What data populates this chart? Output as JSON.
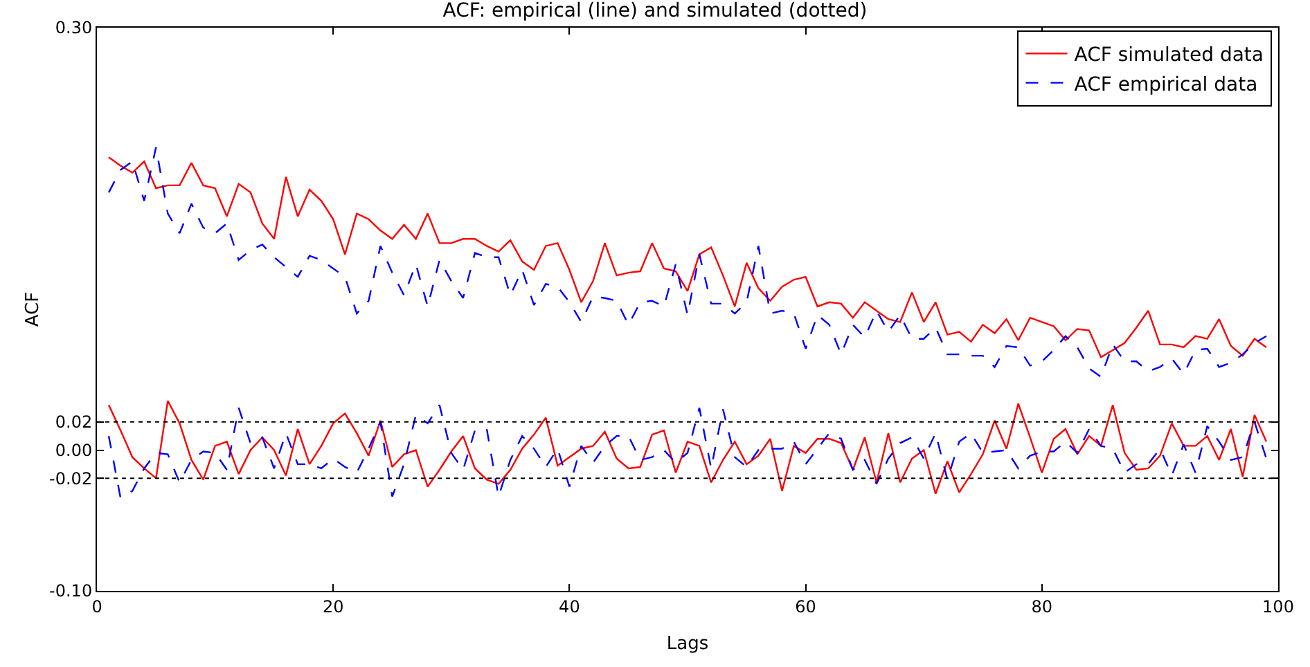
{
  "chart_data": {
    "type": "line",
    "title": "ACF: empirical (line) and simulated (dotted)",
    "xlabel": "Lags",
    "ylabel": "ACF",
    "x": [
      1,
      2,
      3,
      4,
      5,
      6,
      7,
      8,
      9,
      10,
      11,
      12,
      13,
      14,
      15,
      16,
      17,
      18,
      19,
      20,
      21,
      22,
      23,
      24,
      25,
      26,
      27,
      28,
      29,
      30,
      31,
      32,
      33,
      34,
      35,
      36,
      37,
      38,
      39,
      40,
      41,
      42,
      43,
      44,
      45,
      46,
      47,
      48,
      49,
      50,
      51,
      52,
      53,
      54,
      55,
      56,
      57,
      58,
      59,
      60,
      61,
      62,
      63,
      64,
      65,
      66,
      67,
      68,
      69,
      70,
      71,
      72,
      73,
      74,
      75,
      76,
      77,
      78,
      79,
      80,
      81,
      82,
      83,
      84,
      85,
      86,
      87,
      88,
      89,
      90,
      91,
      92,
      93,
      94,
      95,
      96,
      97,
      98,
      99
    ],
    "series": [
      {
        "name": "ACF simulated data",
        "color": "#ff0000",
        "line_style": "solid",
        "values": [
          0.208,
          0.202,
          0.197,
          0.205,
          0.186,
          0.188,
          0.188,
          0.204,
          0.188,
          0.186,
          0.166,
          0.189,
          0.183,
          0.161,
          0.15,
          0.194,
          0.166,
          0.185,
          0.177,
          0.164,
          0.139,
          0.168,
          0.164,
          0.156,
          0.15,
          0.16,
          0.15,
          0.168,
          0.147,
          0.147,
          0.15,
          0.15,
          0.145,
          0.141,
          0.149,
          0.134,
          0.128,
          0.145,
          0.147,
          0.128,
          0.105,
          0.12,
          0.147,
          0.124,
          0.126,
          0.127,
          0.147,
          0.129,
          0.127,
          0.113,
          0.139,
          0.144,
          0.124,
          0.102,
          0.133,
          0.115,
          0.106,
          0.116,
          0.121,
          0.123,
          0.102,
          0.105,
          0.104,
          0.094,
          0.105,
          0.099,
          0.093,
          0.091,
          0.112,
          0.091,
          0.105,
          0.082,
          0.084,
          0.077,
          0.089,
          0.083,
          0.093,
          0.078,
          0.094,
          0.091,
          0.088,
          0.078,
          0.086,
          0.085,
          0.066,
          0.071,
          0.076,
          0.087,
          0.099,
          0.075,
          0.075,
          0.073,
          0.081,
          0.079,
          0.093,
          0.074,
          0.067,
          0.079,
          0.073
        ]
      },
      {
        "name": "ACF empirical data",
        "color": "#0000ff",
        "line_style": "dashed",
        "values": [
          0.183,
          0.199,
          0.205,
          0.177,
          0.215,
          0.168,
          0.154,
          0.175,
          0.158,
          0.154,
          0.161,
          0.135,
          0.142,
          0.146,
          0.137,
          0.13,
          0.123,
          0.138,
          0.135,
          0.129,
          0.123,
          0.097,
          0.106,
          0.145,
          0.126,
          0.11,
          0.132,
          0.102,
          0.135,
          0.12,
          0.108,
          0.14,
          0.137,
          0.137,
          0.11,
          0.128,
          0.103,
          0.118,
          0.116,
          0.105,
          0.091,
          0.109,
          0.108,
          0.106,
          0.089,
          0.105,
          0.106,
          0.102,
          0.132,
          0.096,
          0.139,
          0.104,
          0.104,
          0.097,
          0.105,
          0.145,
          0.097,
          0.099,
          0.097,
          0.072,
          0.096,
          0.089,
          0.068,
          0.089,
          0.08,
          0.099,
          0.084,
          0.096,
          0.079,
          0.079,
          0.087,
          0.068,
          0.068,
          0.067,
          0.067,
          0.059,
          0.074,
          0.073,
          0.06,
          0.063,
          0.071,
          0.081,
          0.073,
          0.058,
          0.052,
          0.075,
          0.063,
          0.063,
          0.056,
          0.059,
          0.065,
          0.054,
          0.071,
          0.072,
          0.059,
          0.062,
          0.068,
          0.076,
          0.081
        ]
      },
      {
        "color": "#ff0000",
        "line_style": "solid",
        "values": [
          0.032,
          0.014,
          -0.005,
          -0.013,
          -0.02,
          0.035,
          0.019,
          -0.007,
          -0.021,
          0.003,
          0.006,
          -0.017,
          0.0,
          0.009,
          0.0,
          -0.018,
          0.015,
          -0.01,
          0.003,
          0.019,
          0.026,
          0.012,
          -0.004,
          0.021,
          -0.012,
          -0.003,
          0.0,
          -0.026,
          -0.014,
          -0.001,
          0.01,
          -0.013,
          -0.021,
          -0.024,
          -0.014,
          0.001,
          0.011,
          0.023,
          -0.011,
          -0.005,
          0.001,
          0.003,
          0.013,
          -0.006,
          -0.013,
          -0.012,
          0.011,
          0.014,
          -0.016,
          0.006,
          0.003,
          -0.023,
          -0.007,
          0.006,
          -0.01,
          -0.004,
          0.008,
          -0.029,
          0.003,
          -0.002,
          0.008,
          0.008,
          0.005,
          -0.014,
          0.009,
          -0.023,
          0.012,
          -0.023,
          -0.006,
          0.0,
          -0.031,
          -0.008,
          -0.03,
          -0.017,
          -0.003,
          0.021,
          0.001,
          0.033,
          0.009,
          -0.016,
          0.008,
          0.015,
          -0.003,
          0.01,
          0.003,
          0.032,
          -0.002,
          -0.014,
          -0.013,
          -0.004,
          0.019,
          0.003,
          0.003,
          0.01,
          -0.007,
          0.015,
          -0.019,
          0.025,
          0.006
        ]
      },
      {
        "color": "#0000ff",
        "line_style": "dashed",
        "values": [
          0.01,
          -0.034,
          -0.029,
          -0.013,
          -0.002,
          -0.003,
          -0.023,
          -0.007,
          -0.001,
          -0.002,
          -0.014,
          0.03,
          0.005,
          0.009,
          -0.013,
          0.012,
          -0.01,
          -0.01,
          -0.013,
          -0.006,
          -0.012,
          -0.016,
          0.001,
          0.02,
          -0.033,
          -0.01,
          0.025,
          0.019,
          0.032,
          -0.002,
          -0.014,
          0.014,
          0.015,
          -0.033,
          -0.007,
          0.01,
          0.001,
          -0.012,
          0.001,
          -0.026,
          0.003,
          -0.009,
          0.003,
          0.01,
          0.01,
          -0.007,
          -0.005,
          0.0,
          -0.009,
          -0.002,
          0.03,
          -0.013,
          0.029,
          -0.005,
          -0.012,
          0.0,
          0.001,
          0.001,
          0.006,
          -0.01,
          0.001,
          0.012,
          0.008,
          -0.014,
          -0.007,
          -0.024,
          -0.006,
          0.005,
          0.009,
          -0.006,
          0.012,
          -0.021,
          0.006,
          0.012,
          -0.002,
          -0.001,
          0.0,
          -0.013,
          -0.004,
          -0.001,
          -0.001,
          0.006,
          -0.002,
          0.015,
          0.003,
          0.001,
          -0.016,
          -0.01,
          -0.01,
          0.001,
          -0.018,
          0.004,
          -0.016,
          0.017,
          0.006,
          -0.007,
          -0.005,
          0.02,
          -0.006
        ]
      }
    ],
    "xlim": [
      0,
      100
    ],
    "xticks": [
      0,
      20,
      40,
      60,
      80,
      100
    ],
    "ylim": [
      -0.1,
      0.3
    ],
    "yticks": [
      {
        "value": -0.1,
        "label": "-0.10"
      },
      {
        "value": -0.02,
        "label": "-0.02"
      },
      {
        "value": 0,
        "label": "0.00"
      },
      {
        "value": 0.02,
        "label": "0.02"
      },
      {
        "value": 0.3,
        "label": "0.30"
      }
    ],
    "ref_lines": [
      {
        "axis": "y",
        "value": 0.02,
        "color": "#000000",
        "line_style": "dotted"
      },
      {
        "axis": "y",
        "value": -0.02,
        "color": "#000000",
        "line_style": "dotted"
      }
    ],
    "legend": "top right"
  }
}
